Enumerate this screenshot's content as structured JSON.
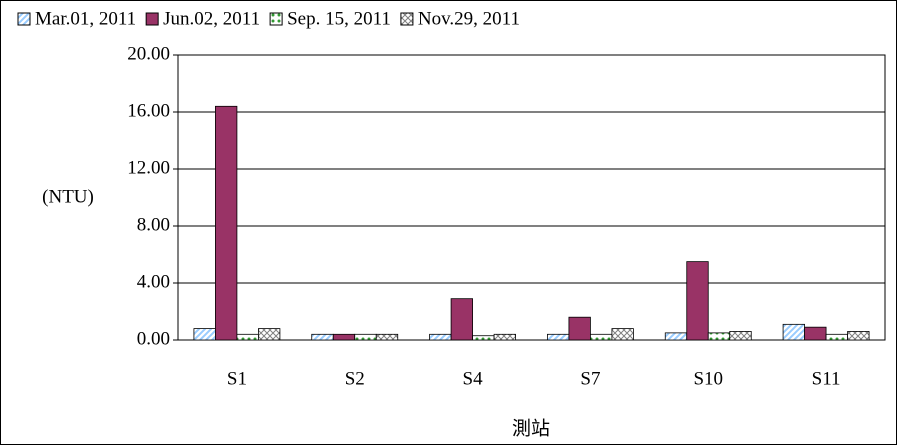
{
  "chart_data": {
    "type": "bar",
    "y_label": "(NTU)",
    "x_label": "測站",
    "categories": [
      "S1",
      "S2",
      "S4",
      "S7",
      "S10",
      "S11"
    ],
    "series": [
      {
        "name": "Mar.01, 2011",
        "color": "#99ccff",
        "values": [
          0.8,
          0.4,
          0.4,
          0.4,
          0.5,
          1.1
        ]
      },
      {
        "name": "Jun.02, 2011",
        "color": "#993366",
        "values": [
          16.4,
          0.4,
          2.9,
          1.6,
          5.5,
          0.9
        ]
      },
      {
        "name": "Sep. 15, 2011",
        "color": "#339933",
        "values": [
          0.4,
          0.4,
          0.3,
          0.4,
          0.5,
          0.4
        ]
      },
      {
        "name": "Nov.29, 2011",
        "color": "#808080",
        "values": [
          0.8,
          0.4,
          0.4,
          0.8,
          0.6,
          0.6
        ]
      }
    ],
    "ylim": [
      0,
      20
    ],
    "yticks": [
      {
        "value": 0,
        "label": "0.00"
      },
      {
        "value": 4,
        "label": "4.00"
      },
      {
        "value": 8,
        "label": "8.00"
      },
      {
        "value": 12,
        "label": "12.00"
      },
      {
        "value": 16,
        "label": "16.00"
      },
      {
        "value": 20,
        "label": "20.00"
      }
    ],
    "grid": true
  }
}
